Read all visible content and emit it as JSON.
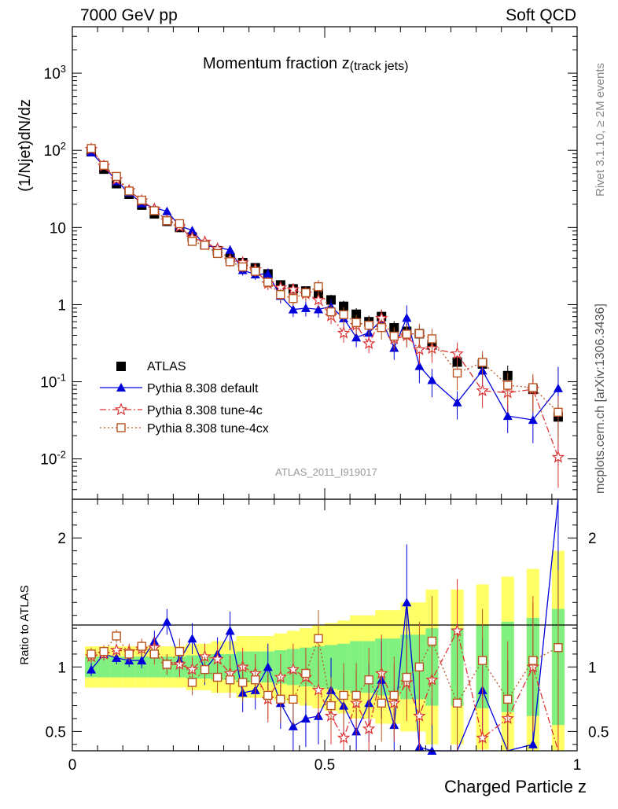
{
  "header": {
    "left": "7000 GeV pp",
    "right": "Soft QCD"
  },
  "side": {
    "top": "Rivet 3.1.10, ≥ 2M events",
    "bottom": "mcplots.cern.ch [arXiv:1306.3436]"
  },
  "chart_data": {
    "type": "scatter",
    "title": "Momentum fraction z",
    "title_sub": "(track jets)",
    "analysis": "ATLAS_2011_I919017",
    "xlabel": "Charged Particle z",
    "ylabel": "(1/Njet)dN/dz",
    "ratio_ylabel": "Ratio to ATLAS",
    "xlim": [
      0,
      1
    ],
    "ylim": [
      0.003,
      4000
    ],
    "yscale": "log",
    "ratio_ylim": [
      0.35,
      2.3
    ],
    "x_ticks": [
      "0",
      "0.5",
      "1"
    ],
    "y_ticks": [
      "10^-2",
      "10^-1",
      "1",
      "10",
      "10^2",
      "10^3"
    ],
    "ratio_ticks": [
      "0.5",
      "1",
      "2"
    ],
    "x": [
      0.0375,
      0.0625,
      0.0875,
      0.1125,
      0.1375,
      0.1625,
      0.1875,
      0.2125,
      0.2375,
      0.2625,
      0.2875,
      0.3125,
      0.3375,
      0.3625,
      0.3875,
      0.4125,
      0.4375,
      0.4625,
      0.4875,
      0.5125,
      0.5375,
      0.5625,
      0.5875,
      0.6125,
      0.6375,
      0.6625,
      0.6875,
      0.7125,
      0.7625,
      0.8125,
      0.8625,
      0.9125,
      0.9625
    ],
    "series": [
      {
        "name": "ATLAS",
        "color": "#000000",
        "marker": "square",
        "values": [
          96,
          57,
          37,
          27,
          19.5,
          15,
          12,
          10,
          7.5,
          6.0,
          5.0,
          4.0,
          3.5,
          3.0,
          2.5,
          1.8,
          1.6,
          1.5,
          1.4,
          1.15,
          0.95,
          0.75,
          0.6,
          0.7,
          0.5,
          0.45,
          0.42,
          0.3,
          0.18,
          0.17,
          0.12,
          0.08,
          0.035
        ],
        "rel_err": [
          0.08,
          0.08,
          0.08,
          0.08,
          0.08,
          0.08,
          0.08,
          0.08,
          0.09,
          0.09,
          0.1,
          0.1,
          0.12,
          0.12,
          0.12,
          0.13,
          0.14,
          0.15,
          0.16,
          0.17,
          0.18,
          0.2,
          0.2,
          0.22,
          0.22,
          0.25,
          0.25,
          0.3,
          0.3,
          0.32,
          0.35,
          0.38,
          0.45
        ]
      },
      {
        "name": "Pythia 8.308 default",
        "color": "#0000dd",
        "marker": "triangle",
        "line": "solid",
        "ratio": [
          0.98,
          1.1,
          1.07,
          1.05,
          1.05,
          1.2,
          1.35,
          1.05,
          1.22,
          0.98,
          1.1,
          1.28,
          0.8,
          0.82,
          1.0,
          0.72,
          0.54,
          0.6,
          0.62,
          0.82,
          0.7,
          0.5,
          0.72,
          0.9,
          0.55,
          1.5,
          0.38,
          0.35,
          0.3,
          0.82,
          0.3,
          0.4,
          2.35
        ],
        "ratio_err": [
          0.05,
          0.05,
          0.05,
          0.05,
          0.06,
          0.08,
          0.1,
          0.1,
          0.12,
          0.12,
          0.13,
          0.15,
          0.15,
          0.15,
          0.18,
          0.2,
          0.2,
          0.22,
          0.22,
          0.25,
          0.25,
          0.25,
          0.3,
          0.3,
          0.3,
          0.45,
          0.4,
          0.4,
          0.4,
          0.4,
          0.4,
          0.5,
          0.9
        ]
      },
      {
        "name": "Pythia 8.308 tune-4c",
        "color": "#dd3333",
        "marker": "star",
        "line": "dashdot",
        "ratio": [
          1.08,
          1.1,
          1.13,
          1.12,
          1.14,
          1.15,
          1.02,
          1.02,
          0.98,
          1.08,
          1.06,
          0.95,
          1.0,
          0.95,
          0.75,
          0.92,
          0.98,
          0.92,
          0.82,
          0.62,
          0.45,
          0.72,
          0.52,
          0.95,
          0.72,
          0.88,
          0.62,
          0.9,
          1.28,
          0.45,
          0.6,
          1.0,
          0.3
        ],
        "ratio_err": [
          0.05,
          0.05,
          0.05,
          0.06,
          0.06,
          0.08,
          0.08,
          0.1,
          0.1,
          0.1,
          0.12,
          0.14,
          0.15,
          0.15,
          0.18,
          0.18,
          0.2,
          0.2,
          0.22,
          0.22,
          0.25,
          0.25,
          0.25,
          0.3,
          0.3,
          0.3,
          0.35,
          0.35,
          0.4,
          0.4,
          0.45,
          0.5,
          0.6
        ]
      },
      {
        "name": "Pythia 8.308 tune-4cx",
        "color": "#bb5522",
        "marker": "open-square",
        "line": "dotted",
        "ratio": [
          1.1,
          1.12,
          1.24,
          1.1,
          1.16,
          1.1,
          1.02,
          1.12,
          0.88,
          0.98,
          0.92,
          0.9,
          0.88,
          0.9,
          0.78,
          0.75,
          0.75,
          0.95,
          1.22,
          0.7,
          0.78,
          0.78,
          0.9,
          0.72,
          0.78,
          0.92,
          1.0,
          1.2,
          0.72,
          1.05,
          0.75,
          1.05,
          1.15
        ],
        "ratio_err": [
          0.05,
          0.05,
          0.05,
          0.06,
          0.06,
          0.08,
          0.08,
          0.1,
          0.1,
          0.1,
          0.12,
          0.14,
          0.15,
          0.15,
          0.18,
          0.18,
          0.2,
          0.2,
          0.22,
          0.22,
          0.25,
          0.25,
          0.25,
          0.3,
          0.3,
          0.3,
          0.35,
          0.35,
          0.4,
          0.4,
          0.45,
          0.5,
          0.6
        ]
      }
    ],
    "band_colors": {
      "inner": "#80f080",
      "outer": "#ffff66"
    }
  }
}
